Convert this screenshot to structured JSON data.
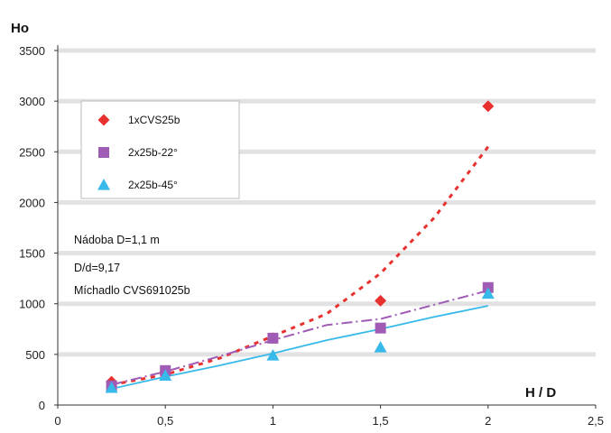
{
  "chart_data": {
    "type": "scatter",
    "title": "",
    "ylabel": "Ho",
    "xlabel": "H / D",
    "xlim": [
      0,
      2.5
    ],
    "ylim": [
      0,
      3500
    ],
    "xticks": [
      0,
      0.5,
      1,
      1.5,
      2,
      2.5
    ],
    "xtick_labels": [
      "0",
      "0,5",
      "1",
      "1,5",
      "2",
      "2,5"
    ],
    "yticks": [
      0,
      500,
      1000,
      1500,
      2000,
      2500,
      3000,
      3500
    ],
    "ytick_labels": [
      "0",
      "500",
      "1000",
      "1500",
      "2000",
      "2500",
      "3000",
      "3500"
    ],
    "grid": "horizontal",
    "legend_position": "top-left",
    "series": [
      {
        "name": "1xCVS25b",
        "marker": "diamond",
        "color": "#e8312f",
        "trend": "exponential",
        "trend_style": "dotted",
        "x": [
          0.25,
          0.5,
          1,
          1.5,
          2
        ],
        "y": [
          230,
          330,
          660,
          1030,
          2950
        ]
      },
      {
        "name": "2x25b-22°",
        "marker": "square",
        "color": "#a05bb5",
        "trend": "power",
        "trend_style": "dash-dot",
        "x": [
          0.25,
          0.5,
          1,
          1.5,
          2
        ],
        "y": [
          190,
          340,
          660,
          760,
          1160
        ]
      },
      {
        "name": "2x25b-45°",
        "marker": "triangle",
        "color": "#37b9ea",
        "trend": "linear",
        "trend_style": "solid",
        "x": [
          0.25,
          0.5,
          1,
          1.5,
          2
        ],
        "y": [
          170,
          290,
          490,
          570,
          1100
        ]
      }
    ],
    "annotations": [
      "Nádoba D=1,1 m",
      "D/d=9,17",
      "Míchadlo CVS691025b"
    ]
  },
  "trendlines": {
    "exponential": {
      "x": [
        0.25,
        0.5,
        0.75,
        1,
        1.25,
        1.5,
        1.75,
        2
      ],
      "y": [
        200,
        300,
        460,
        680,
        900,
        1300,
        1850,
        2550
      ]
    },
    "power": {
      "x": [
        0.25,
        0.5,
        0.75,
        1,
        1.25,
        1.5,
        1.75,
        2
      ],
      "y": [
        200,
        330,
        480,
        640,
        790,
        850,
        990,
        1130
      ]
    },
    "linear": {
      "x": [
        0.25,
        0.5,
        0.75,
        1,
        1.25,
        1.5,
        1.75,
        2
      ],
      "y": [
        160,
        280,
        390,
        510,
        640,
        750,
        870,
        980
      ]
    }
  }
}
